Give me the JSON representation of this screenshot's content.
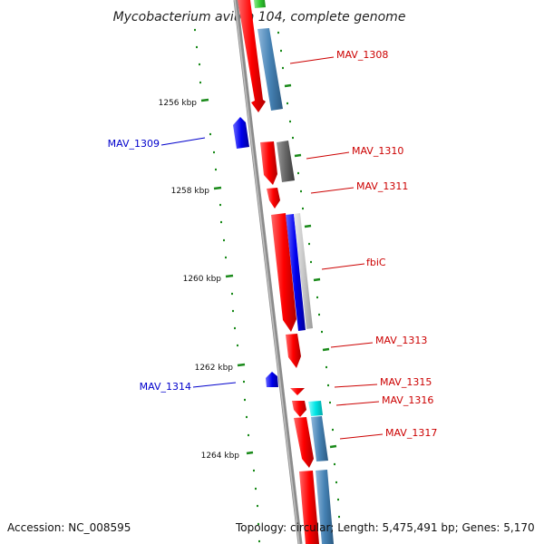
{
  "title": "Mycobacterium avium 104, complete genome",
  "footer": {
    "accession": "Accession: NC_008595",
    "stats": "Topology: circular; Length: 5,475,491 bp; Genes: 5,170"
  },
  "colors": {
    "forward_cds": "#ff0000",
    "reverse_cds": "#0000ee",
    "label_forward": "#cc0000",
    "label_reverse": "#0000cc",
    "backbone": "#999999",
    "ruler": "#1a8a1a",
    "feature_gray": "#666666",
    "feature_steel": "#4682b4",
    "feature_cyan": "#00e5e5",
    "feature_green": "#33cc33",
    "feature_light_gray": "#c8c8c8"
  },
  "ruler": {
    "unit": "kbp",
    "labels": [
      "1256 kbp",
      "1258 kbp",
      "1260 kbp",
      "1262 kbp",
      "1264 kbp"
    ]
  },
  "genes": [
    {
      "name": "MAV_1308",
      "strand": "forward"
    },
    {
      "name": "MAV_1309",
      "strand": "reverse"
    },
    {
      "name": "MAV_1310",
      "strand": "forward"
    },
    {
      "name": "MAV_1311",
      "strand": "forward"
    },
    {
      "name": "fbiC",
      "strand": "forward"
    },
    {
      "name": "MAV_1313",
      "strand": "forward"
    },
    {
      "name": "MAV_1314",
      "strand": "reverse"
    },
    {
      "name": "MAV_1315",
      "strand": "forward"
    },
    {
      "name": "MAV_1316",
      "strand": "forward"
    },
    {
      "name": "MAV_1317",
      "strand": "forward"
    }
  ]
}
